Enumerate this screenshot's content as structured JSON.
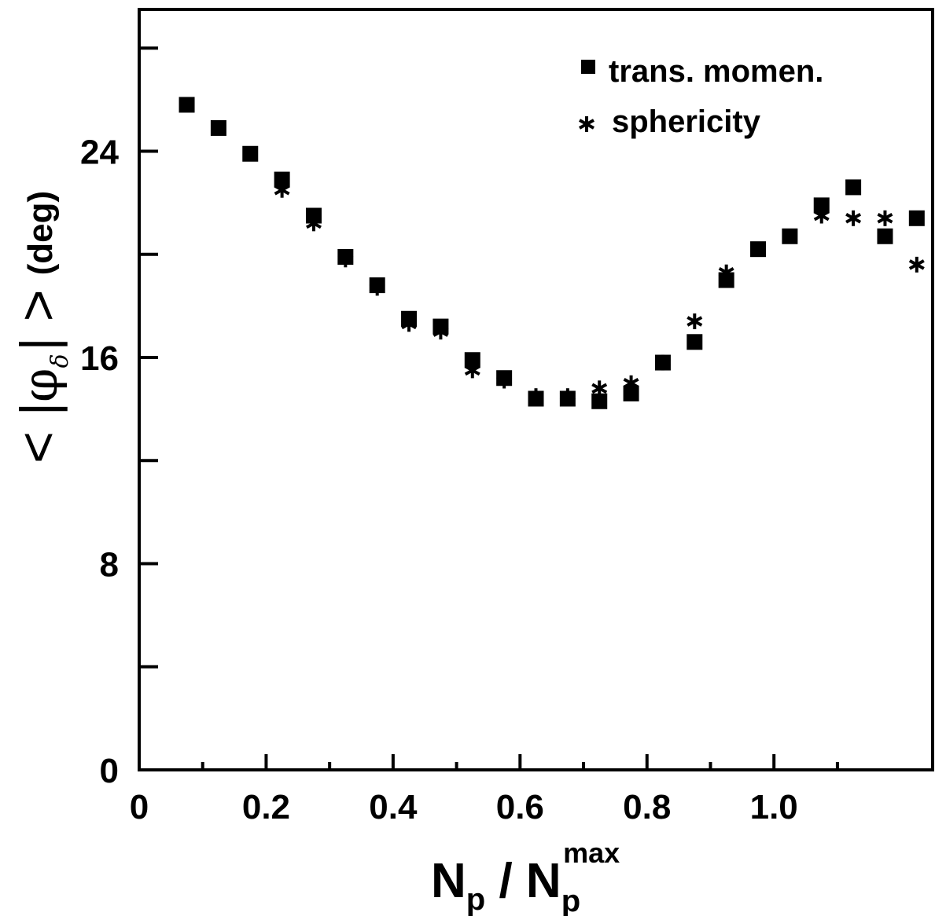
{
  "chart_data": {
    "type": "scatter",
    "xlabel": "N_p / N_p^max",
    "xlabel_parts": {
      "main": "N",
      "sub": "p",
      "sep": " / ",
      "main2": "N",
      "sub2": "p",
      "sup2": "max"
    },
    "ylabel_parts": {
      "lt": "<",
      "bar1": "|",
      "phi": "φ",
      "sub": "δ",
      "bar2": "|",
      "gt": ">",
      "unit": "(deg)"
    },
    "xlim": [
      0,
      1.25
    ],
    "ylim": [
      0,
      29.5
    ],
    "x_ticks": [
      0,
      0.2,
      0.4,
      0.6,
      0.8,
      1.0
    ],
    "x_tick_labels": [
      "0",
      "0.2",
      "0.4",
      "0.6",
      "0.8",
      "1.0"
    ],
    "x_minor_ticks": [
      0.1,
      0.3,
      0.5,
      0.7,
      0.9,
      1.1
    ],
    "y_ticks": [
      0,
      8,
      16,
      24
    ],
    "y_tick_labels": [
      "0",
      "8",
      "16",
      "24"
    ],
    "y_minor_ticks": [
      4,
      12,
      20,
      28
    ],
    "grid": false,
    "legend_position": "top-right",
    "series": [
      {
        "name": "trans. momen.",
        "marker": "square",
        "x": [
          0.075,
          0.125,
          0.175,
          0.225,
          0.275,
          0.325,
          0.375,
          0.425,
          0.475,
          0.525,
          0.575,
          0.625,
          0.675,
          0.725,
          0.775,
          0.825,
          0.875,
          0.925,
          0.975,
          1.025,
          1.075,
          1.125,
          1.175,
          1.225
        ],
        "y": [
          25.8,
          24.9,
          23.9,
          22.9,
          21.5,
          19.9,
          18.8,
          17.5,
          17.2,
          15.9,
          15.2,
          14.4,
          14.4,
          14.3,
          14.6,
          15.8,
          16.6,
          19.0,
          20.2,
          20.7,
          21.9,
          22.6,
          20.7,
          21.4
        ]
      },
      {
        "name": "sphericity",
        "marker": "asterisk",
        "x": [
          0.225,
          0.275,
          0.325,
          0.375,
          0.425,
          0.475,
          0.525,
          0.575,
          0.625,
          0.675,
          0.725,
          0.775,
          0.825,
          0.875,
          0.925,
          1.075,
          1.125,
          1.175,
          1.225
        ],
        "y": [
          22.5,
          21.2,
          19.8,
          18.7,
          17.3,
          17.0,
          15.5,
          15.1,
          14.5,
          14.5,
          14.8,
          15.0,
          15.8,
          17.4,
          19.3,
          21.5,
          21.4,
          21.4,
          19.6
        ]
      }
    ]
  }
}
